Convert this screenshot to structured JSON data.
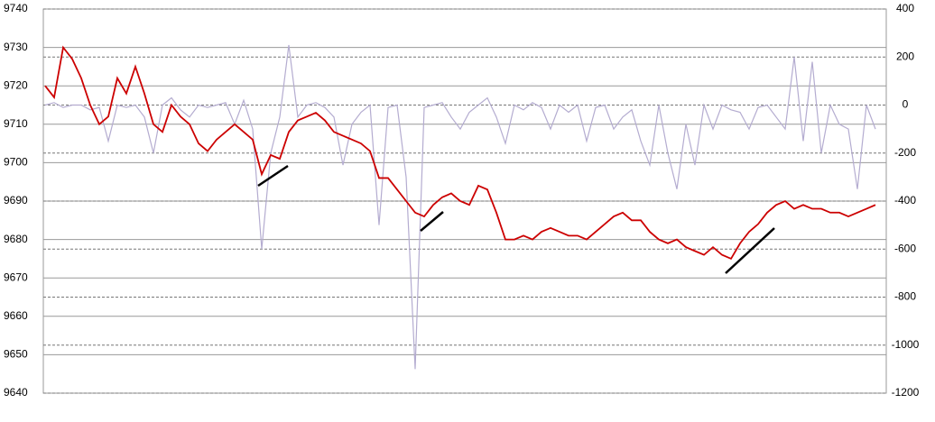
{
  "chart_data": {
    "type": "line",
    "categories": [
      null,
      null,
      null,
      null,
      null,
      null,
      null,
      null,
      null,
      null,
      null,
      null,
      null,
      null,
      null,
      null,
      null,
      null,
      null,
      null,
      null,
      null,
      null,
      null,
      null,
      null,
      null,
      null,
      null,
      null,
      null,
      null,
      null,
      null,
      null,
      null,
      null,
      null,
      null,
      null,
      null,
      null,
      null,
      null,
      null,
      null,
      null,
      null,
      null,
      null,
      null,
      null,
      null,
      null,
      null,
      null,
      null,
      null,
      null,
      null,
      null,
      null,
      null,
      null,
      null,
      null,
      null,
      null,
      null,
      null,
      null,
      null,
      null,
      null,
      null,
      null,
      null,
      null,
      null,
      null,
      null,
      null,
      null,
      null,
      null,
      null,
      null,
      null,
      null,
      null,
      null,
      null,
      null
    ],
    "ylim": [
      9640,
      9740
    ],
    "yticks": [
      9640,
      9650,
      9660,
      9670,
      9680,
      9690,
      9700,
      9710,
      9720,
      9730,
      9740
    ],
    "y2lim": [
      -1200,
      400
    ],
    "y2ticks": [
      -1200,
      -1000,
      -800,
      -600,
      -400,
      -200,
      0,
      200,
      400
    ],
    "grid": true,
    "series": [
      {
        "color": "#b4acd0",
        "axis": "y2",
        "values": [
          0,
          10,
          -10,
          0,
          0,
          -20,
          -10,
          -150,
          0,
          -10,
          0,
          -50,
          -200,
          0,
          30,
          -20,
          -50,
          0,
          -10,
          0,
          10,
          -80,
          20,
          -100,
          -600,
          -200,
          -50,
          250,
          -50,
          0,
          10,
          -10,
          -50,
          -250,
          -80,
          -30,
          0,
          -500,
          -10,
          0,
          -300,
          -1100,
          -10,
          0,
          10,
          -50,
          -100,
          -30,
          0,
          30,
          -50,
          -160,
          0,
          -20,
          10,
          -10,
          -100,
          0,
          -30,
          0,
          -150,
          -10,
          0,
          -100,
          -50,
          -20,
          -150,
          -250,
          0,
          -200,
          -350,
          -80,
          -250,
          0,
          -100,
          0,
          -20,
          -30,
          -100,
          -10,
          0,
          -50,
          -100,
          200,
          -150,
          180,
          -200,
          0,
          -80,
          -100,
          -350,
          0,
          -100
        ]
      },
      {
        "color": "#cc0000",
        "values": [
          9720,
          9717,
          9730,
          9727,
          9722,
          9715,
          9710,
          9712,
          9722,
          9718,
          9725,
          9718,
          9710,
          9708,
          9715,
          9712,
          9710,
          9705,
          9703,
          9706,
          9708,
          9710,
          9708,
          9706,
          9697,
          9702,
          9701,
          9708,
          9711,
          9712,
          9713,
          9711,
          9708,
          9707,
          9706,
          9705,
          9703,
          9696,
          9696,
          9693,
          9690,
          9687,
          9686,
          9689,
          9691,
          9692,
          9690,
          9689,
          9694,
          9693,
          9687,
          9680,
          9680,
          9681,
          9680,
          9682,
          9683,
          9682,
          9681,
          9681,
          9680,
          9682,
          9684,
          9686,
          9687,
          9685,
          9685,
          9682,
          9680,
          9679,
          9680,
          9678,
          9677,
          9676,
          9678,
          9676,
          9675,
          9679,
          9682,
          9684,
          9687,
          9689,
          9690,
          9688,
          9689,
          9688,
          9688,
          9687,
          9687,
          9686,
          9687,
          9688,
          9689
        ]
      }
    ]
  }
}
